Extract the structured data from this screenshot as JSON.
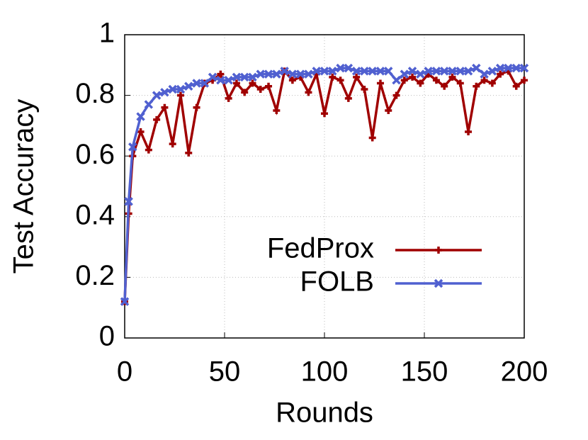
{
  "chart_data": {
    "type": "line",
    "x_label": "Rounds",
    "y_label": "Test Accuracy",
    "xlim": [
      0,
      200
    ],
    "ylim": [
      0,
      1
    ],
    "xticks": [
      0,
      50,
      100,
      150,
      200
    ],
    "yticks": [
      0,
      0.2,
      0.4,
      0.6,
      0.8,
      1
    ],
    "grid": true,
    "legend": "bottom right",
    "x": [
      0,
      2,
      4,
      8,
      12,
      16,
      20,
      24,
      28,
      32,
      36,
      40,
      44,
      48,
      52,
      56,
      60,
      64,
      68,
      72,
      76,
      80,
      84,
      88,
      92,
      96,
      100,
      104,
      108,
      112,
      116,
      120,
      124,
      128,
      132,
      136,
      140,
      144,
      148,
      152,
      156,
      160,
      164,
      168,
      172,
      176,
      180,
      184,
      188,
      192,
      196,
      200
    ],
    "series": [
      {
        "name": "FedProx",
        "color": "#a00000",
        "marker": "plus",
        "values": [
          0.12,
          0.41,
          0.6,
          0.68,
          0.62,
          0.72,
          0.76,
          0.64,
          0.8,
          0.61,
          0.76,
          0.84,
          0.85,
          0.87,
          0.79,
          0.84,
          0.81,
          0.84,
          0.82,
          0.83,
          0.75,
          0.88,
          0.85,
          0.86,
          0.81,
          0.87,
          0.74,
          0.86,
          0.85,
          0.79,
          0.86,
          0.82,
          0.66,
          0.84,
          0.75,
          0.8,
          0.85,
          0.86,
          0.84,
          0.87,
          0.85,
          0.83,
          0.86,
          0.84,
          0.68,
          0.83,
          0.85,
          0.84,
          0.87,
          0.88,
          0.83,
          0.85
        ]
      },
      {
        "name": "FOLB",
        "color": "#5060d0",
        "marker": "cross",
        "values": [
          0.12,
          0.45,
          0.63,
          0.73,
          0.77,
          0.8,
          0.81,
          0.82,
          0.82,
          0.83,
          0.84,
          0.84,
          0.86,
          0.85,
          0.85,
          0.86,
          0.86,
          0.86,
          0.87,
          0.87,
          0.87,
          0.88,
          0.87,
          0.87,
          0.87,
          0.88,
          0.88,
          0.88,
          0.89,
          0.89,
          0.88,
          0.88,
          0.88,
          0.88,
          0.88,
          0.85,
          0.87,
          0.88,
          0.87,
          0.88,
          0.88,
          0.88,
          0.88,
          0.88,
          0.88,
          0.89,
          0.87,
          0.88,
          0.89,
          0.89,
          0.89,
          0.89
        ]
      }
    ]
  }
}
